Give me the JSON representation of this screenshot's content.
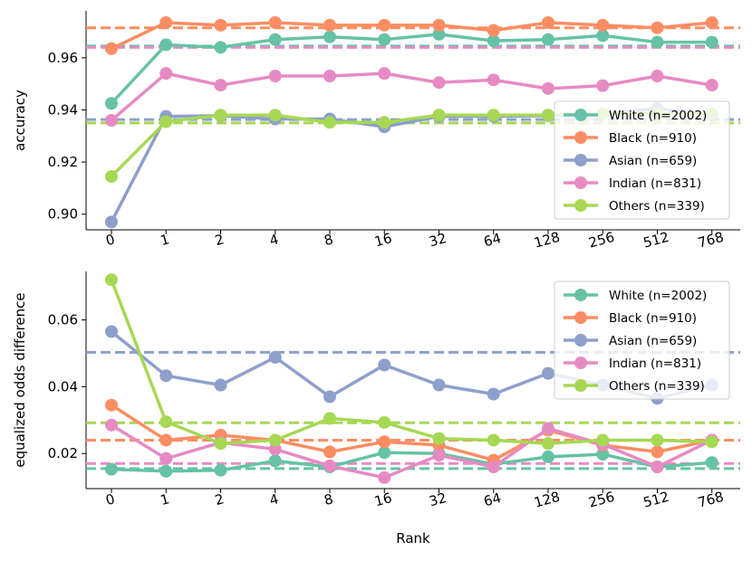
{
  "colors": {
    "white": "#66c2a5",
    "black": "#fc8d62",
    "asian": "#8da0cb",
    "indian": "#e78ac3",
    "others": "#a6d854"
  },
  "legend_labels": [
    "White (n=2002)",
    "Black (n=910)",
    "Asian (n=659)",
    "Indian (n=831)",
    "Others (n=339)"
  ],
  "chart_data": [
    {
      "type": "line",
      "categories": [
        "0",
        "1",
        "2",
        "4",
        "8",
        "16",
        "32",
        "64",
        "128",
        "256",
        "512",
        "768"
      ],
      "xlabel": "",
      "ylabel": "accuracy",
      "ylim": [
        0.894,
        0.978
      ],
      "yticks": [
        0.9,
        0.92,
        0.94,
        0.96
      ],
      "ytick_labels": [
        "0.90",
        "0.92",
        "0.94",
        "0.96"
      ],
      "legend_position": "center-right",
      "series": [
        {
          "name": "White (n=2002)",
          "color_key": "white",
          "baseline": 0.9645,
          "values": [
            0.9425,
            0.965,
            0.964,
            0.967,
            0.968,
            0.967,
            0.969,
            0.9665,
            0.967,
            0.9685,
            0.966,
            0.966
          ]
        },
        {
          "name": "Black (n=910)",
          "color_key": "black",
          "baseline": 0.9715,
          "values": [
            0.9635,
            0.9735,
            0.9725,
            0.9735,
            0.9725,
            0.9725,
            0.9725,
            0.9705,
            0.9735,
            0.9725,
            0.9715,
            0.9735
          ]
        },
        {
          "name": "Asian (n=659)",
          "color_key": "asian",
          "baseline": 0.9363,
          "values": [
            0.897,
            0.9375,
            0.9378,
            0.9365,
            0.9365,
            0.9335,
            0.9375,
            0.9375,
            0.9378,
            0.9385,
            0.9405,
            0.938
          ]
        },
        {
          "name": "Indian (n=831)",
          "color_key": "indian",
          "baseline": 0.964,
          "values": [
            0.936,
            0.954,
            0.9495,
            0.953,
            0.953,
            0.954,
            0.9505,
            0.9515,
            0.9482,
            0.9493,
            0.953,
            0.9495
          ]
        },
        {
          "name": "Others (n=339)",
          "color_key": "others",
          "baseline": 0.935,
          "values": [
            0.9145,
            0.9355,
            0.938,
            0.938,
            0.9352,
            0.9352,
            0.938,
            0.938,
            0.938,
            0.9385,
            0.9385,
            0.9385
          ]
        }
      ]
    },
    {
      "type": "line",
      "categories": [
        "0",
        "1",
        "2",
        "4",
        "8",
        "16",
        "32",
        "64",
        "128",
        "256",
        "512",
        "768"
      ],
      "xlabel": "Rank",
      "ylabel": "equalized odds difference",
      "ylim": [
        0.0095,
        0.0745
      ],
      "yticks": [
        0.02,
        0.04,
        0.06
      ],
      "ytick_labels": [
        "0.02",
        "0.04",
        "0.06"
      ],
      "legend_position": "top-right",
      "series": [
        {
          "name": "White (n=2002)",
          "color_key": "white",
          "baseline": 0.0155,
          "values": [
            0.0153,
            0.0147,
            0.015,
            0.0178,
            0.016,
            0.0203,
            0.02,
            0.0168,
            0.019,
            0.0198,
            0.016,
            0.0173
          ]
        },
        {
          "name": "Black (n=910)",
          "color_key": "black",
          "baseline": 0.024,
          "values": [
            0.0345,
            0.024,
            0.0255,
            0.024,
            0.0205,
            0.0235,
            0.0225,
            0.018,
            0.027,
            0.0225,
            0.0205,
            0.024
          ]
        },
        {
          "name": "Asian (n=659)",
          "color_key": "asian",
          "baseline": 0.0503,
          "values": [
            0.0565,
            0.0433,
            0.0405,
            0.0488,
            0.037,
            0.0465,
            0.0405,
            0.0378,
            0.044,
            0.0405,
            0.0365,
            0.0405
          ]
        },
        {
          "name": "Indian (n=831)",
          "color_key": "indian",
          "baseline": 0.017,
          "values": [
            0.0285,
            0.0185,
            0.0233,
            0.0213,
            0.0163,
            0.0128,
            0.0195,
            0.016,
            0.0275,
            0.0228,
            0.016,
            0.024
          ]
        },
        {
          "name": "Others (n=339)",
          "color_key": "others",
          "baseline": 0.0292,
          "values": [
            0.072,
            0.0295,
            0.023,
            0.024,
            0.0305,
            0.0293,
            0.0245,
            0.024,
            0.023,
            0.024,
            0.024,
            0.0235
          ]
        }
      ]
    }
  ]
}
